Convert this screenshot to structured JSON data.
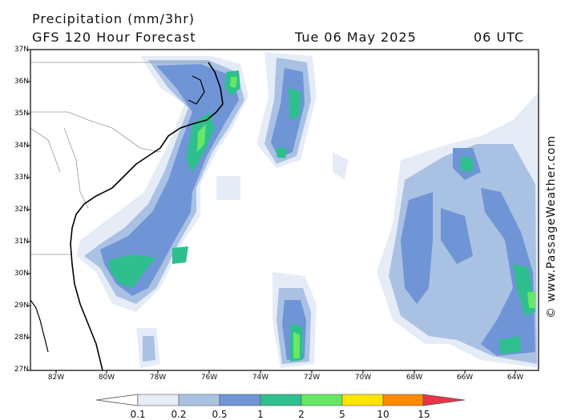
{
  "header": {
    "title": "Precipitation (mm/3hr)",
    "subtitle": "GFS 120 Hour Forecast",
    "date": "Tue 06 May 2025",
    "time": "06 UTC"
  },
  "credit": "© www.PassageWeather.com",
  "map": {
    "lat_labels": [
      "37N",
      "36N",
      "35N",
      "34N",
      "33N",
      "32N",
      "31N",
      "30N",
      "29N",
      "28N",
      "27N"
    ],
    "lon_labels": [
      "82W",
      "80W",
      "78W",
      "76W",
      "74W",
      "72W",
      "70W",
      "68W",
      "66W",
      "64W"
    ]
  },
  "legend": {
    "labels": [
      "0.1",
      "0.2",
      "0.5",
      "1",
      "2",
      "5",
      "10",
      "15"
    ],
    "colors": [
      "#e6ecf7",
      "#a9c1e3",
      "#6f95d6",
      "#2fbf8f",
      "#66e865",
      "#ffe600",
      "#ff8a00",
      "#e8344a"
    ]
  }
}
